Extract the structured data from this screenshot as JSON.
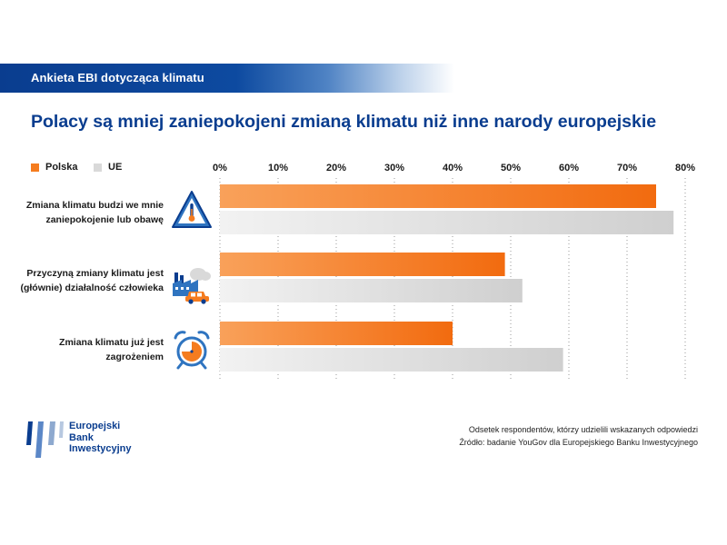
{
  "header": {
    "title": "Ankieta EBI dotycząca klimatu"
  },
  "main_title": "Polacy są mniej zaniepokojeni zmianą klimatu niż inne narody europejskie",
  "legend": [
    {
      "label": "Polska",
      "color": "#f57c1f"
    },
    {
      "label": "UE",
      "color": "#d9d9d9"
    }
  ],
  "rows": [
    {
      "label_line1": "Zmiana klimatu budzi we mnie",
      "label_line2": "zaniepokojenie lub obawę",
      "icon": "warning-thermometer-icon"
    },
    {
      "label_line1": "Przyczyną zmiany klimatu jest",
      "label_line2": "(głównie) działalność człowieka",
      "icon": "factory-car-icon"
    },
    {
      "label_line1": "Zmiana klimatu już jest",
      "label_line2": "zagrożeniem",
      "icon": "alarm-clock-icon"
    }
  ],
  "chart_data": {
    "type": "bar",
    "orientation": "horizontal",
    "categories": [
      "Zmiana klimatu budzi we mnie zaniepokojenie lub obawę",
      "Przyczyną zmiany klimatu jest (głównie) działalność człowieka",
      "Zmiana klimatu już jest zagrożeniem"
    ],
    "series": [
      {
        "name": "Polska",
        "values": [
          75,
          49,
          40
        ],
        "color": "#f57c1f"
      },
      {
        "name": "UE",
        "values": [
          78,
          52,
          59
        ],
        "color": "#d9d9d9"
      }
    ],
    "xlim": [
      0,
      80
    ],
    "x_ticks": [
      "0%",
      "10%",
      "20%",
      "30%",
      "40%",
      "50%",
      "60%",
      "70%",
      "80%"
    ],
    "x_tick_values": [
      0,
      10,
      20,
      30,
      40,
      50,
      60,
      70,
      80
    ],
    "title": "Polacy są mniej zaniepokojeni zmianą klimatu niż inne narody europejskie",
    "legend_position": "top-left",
    "grid": "vertical dotted"
  },
  "footnotes": {
    "line1": "Odsetek respondentów, którzy udzielili wskazanych odpowiedzi",
    "line2": "Źródło: badanie YouGov dla Europejskiego Banku Inwestycyjnego"
  },
  "logo": {
    "line1": "Europejski",
    "line2": "Bank",
    "line3": "Inwestycyjny"
  },
  "colors": {
    "brand_blue": "#0a3d8f",
    "accent_orange": "#f57c1f",
    "eu_grey": "#d9d9d9"
  }
}
